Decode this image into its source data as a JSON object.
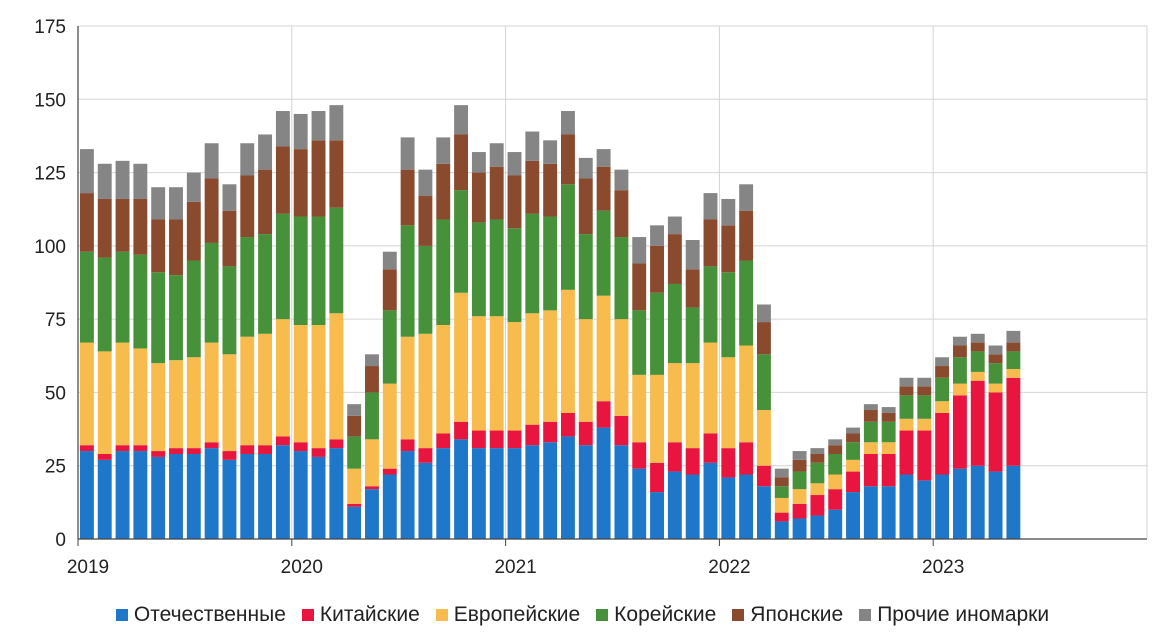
{
  "chart_data": {
    "type": "bar",
    "stacked": true,
    "title": "",
    "xlabel": "",
    "ylabel": "",
    "ylim": [
      0,
      175
    ],
    "yticks": [
      0,
      25,
      50,
      75,
      100,
      125,
      150,
      175
    ],
    "year_labels": [
      "2019",
      "2020",
      "2021",
      "2022",
      "2023"
    ],
    "year_start_index": [
      0,
      12,
      24,
      36,
      48
    ],
    "total_slots": 60,
    "grid": true,
    "legend_position": "bottom",
    "series": [
      {
        "name": "Отечественные",
        "color": "#1f77c9",
        "values": [
          30,
          27,
          30,
          30,
          28,
          29,
          29,
          31,
          27,
          29,
          29,
          32,
          30,
          28,
          31,
          11,
          17,
          22,
          30,
          26,
          31,
          34,
          31,
          31,
          31,
          32,
          33,
          35,
          32,
          38,
          32,
          24,
          16,
          23,
          22,
          26,
          21,
          22,
          18,
          6,
          7,
          8,
          10,
          16,
          18,
          18,
          22,
          20,
          22,
          24,
          25,
          23,
          25
        ]
      },
      {
        "name": "Китайские",
        "color": "#e8153f",
        "values": [
          2,
          2,
          2,
          2,
          2,
          2,
          2,
          2,
          3,
          3,
          3,
          3,
          3,
          3,
          3,
          1,
          1,
          2,
          4,
          5,
          5,
          6,
          6,
          6,
          6,
          7,
          7,
          8,
          8,
          9,
          10,
          9,
          10,
          10,
          9,
          10,
          10,
          11,
          7,
          3,
          5,
          7,
          7,
          7,
          11,
          11,
          15,
          17,
          21,
          25,
          29,
          27,
          30
        ]
      },
      {
        "name": "Европейские",
        "color": "#f7bc4d",
        "values": [
          35,
          35,
          35,
          33,
          30,
          30,
          31,
          34,
          33,
          37,
          38,
          40,
          40,
          42,
          43,
          12,
          16,
          29,
          35,
          39,
          37,
          44,
          39,
          39,
          37,
          38,
          38,
          42,
          35,
          36,
          33,
          23,
          30,
          27,
          29,
          31,
          31,
          33,
          19,
          5,
          5,
          4,
          5,
          4,
          4,
          4,
          4,
          4,
          4,
          4,
          3,
          3,
          3
        ]
      },
      {
        "name": "Корейские",
        "color": "#47913a",
        "values": [
          31,
          32,
          31,
          32,
          31,
          29,
          33,
          34,
          30,
          34,
          34,
          36,
          37,
          37,
          36,
          11,
          16,
          25,
          38,
          30,
          36,
          35,
          32,
          33,
          32,
          34,
          32,
          36,
          29,
          29,
          28,
          22,
          28,
          27,
          19,
          26,
          29,
          29,
          19,
          4,
          6,
          7,
          7,
          6,
          7,
          7,
          8,
          8,
          8,
          9,
          7,
          7,
          6
        ]
      },
      {
        "name": "Японские",
        "color": "#8a4a2d",
        "values": [
          20,
          20,
          18,
          19,
          18,
          19,
          20,
          22,
          19,
          21,
          22,
          23,
          23,
          26,
          23,
          7,
          9,
          14,
          19,
          17,
          19,
          19,
          17,
          18,
          18,
          18,
          18,
          17,
          19,
          15,
          16,
          16,
          16,
          17,
          13,
          16,
          16,
          17,
          11,
          3,
          4,
          3,
          3,
          3,
          4,
          3,
          3,
          3,
          4,
          4,
          3,
          3,
          3
        ]
      },
      {
        "name": "Прочие иномарки",
        "color": "#858585",
        "values": [
          15,
          12,
          13,
          12,
          11,
          11,
          10,
          12,
          9,
          11,
          12,
          12,
          12,
          10,
          12,
          4,
          4,
          6,
          11,
          9,
          9,
          10,
          7,
          8,
          8,
          10,
          8,
          8,
          7,
          6,
          7,
          9,
          7,
          6,
          10,
          9,
          9,
          9,
          6,
          3,
          3,
          2,
          2,
          2,
          2,
          2,
          3,
          3,
          3,
          3,
          3,
          3,
          4
        ]
      }
    ]
  }
}
